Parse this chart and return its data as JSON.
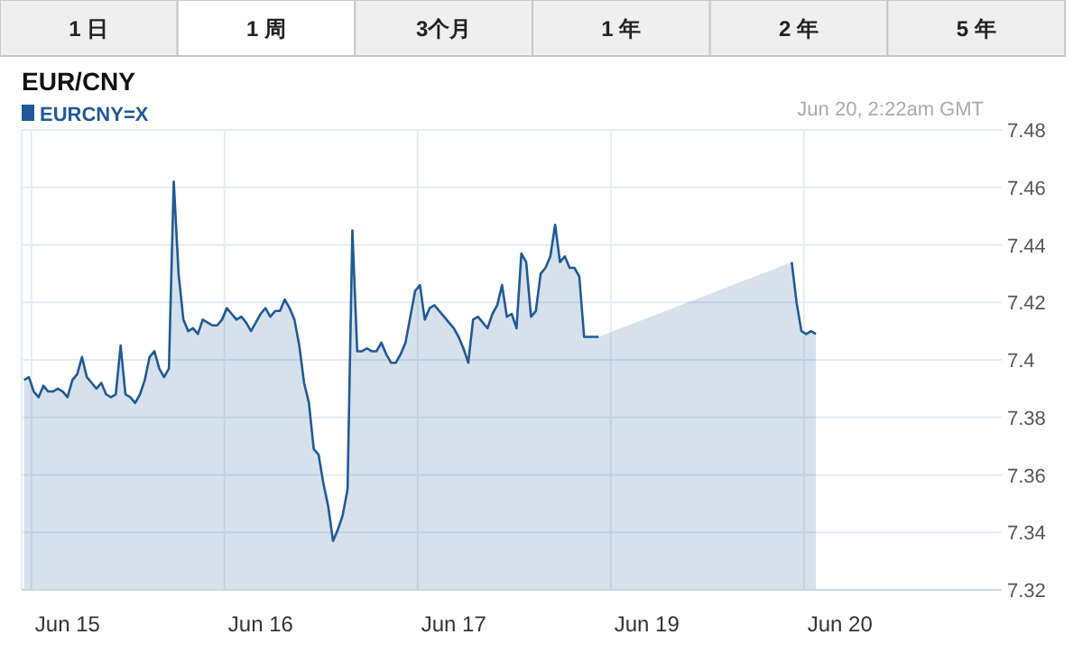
{
  "chart_data": {
    "type": "area",
    "title": "EUR/CNY",
    "annotations": [
      "1 日",
      "1 周",
      "3个月",
      "1 年",
      "2 年",
      "5 年",
      "Jun 20, 2:22am GMT"
    ],
    "legend": "top left",
    "grid": true,
    "marker": "none",
    "line_style": "solid",
    "categories": [
      null,
      null,
      null,
      null,
      null,
      null,
      null,
      null,
      null,
      "Jun 15",
      null,
      null,
      null,
      null,
      null,
      null,
      null,
      null,
      null,
      null,
      null,
      null,
      null,
      null,
      null,
      null,
      null,
      null,
      null,
      null,
      null,
      null,
      null,
      null,
      null,
      null,
      null,
      null,
      null,
      null,
      null,
      null,
      null,
      null,
      null,
      null,
      null,
      null,
      null,
      "Jun 16",
      null,
      null,
      null,
      null,
      null,
      null,
      null,
      null,
      null,
      null,
      null,
      null,
      null,
      null,
      null,
      null,
      null,
      null,
      null,
      null,
      null,
      null,
      null,
      null,
      null,
      null,
      null,
      null,
      null,
      null,
      null,
      null,
      null,
      null,
      null,
      null,
      null,
      null,
      null,
      "Jun 17",
      null,
      null,
      null,
      null,
      null,
      null,
      null,
      null,
      null,
      null,
      null,
      null,
      null,
      null,
      null,
      null,
      null,
      null,
      null,
      null,
      null,
      null,
      null,
      null,
      null,
      null,
      null,
      null,
      null,
      null,
      null,
      null,
      null,
      null,
      null,
      null,
      null,
      null,
      null,
      "Jun 19",
      null,
      null,
      null,
      null,
      null,
      null,
      null,
      null,
      null,
      null,
      null,
      null,
      null,
      null,
      null,
      null,
      null,
      null,
      null,
      null,
      null,
      null,
      null,
      null,
      null,
      null,
      null,
      null,
      null,
      null,
      null,
      null,
      null,
      null,
      null,
      null,
      null,
      null,
      null,
      "Jun 20",
      null,
      null,
      null,
      null,
      null,
      null,
      null,
      null,
      null,
      null,
      null,
      null,
      null,
      null,
      null,
      null,
      null,
      null,
      null,
      null,
      null,
      null,
      null,
      null,
      null,
      null,
      null,
      null,
      null,
      null,
      null,
      null,
      null
    ],
    "ylim": [
      7.32,
      7.48
    ],
    "yticks": [
      7.32,
      7.34,
      7.36,
      7.38,
      7.4,
      7.42,
      7.44,
      7.46,
      7.48
    ],
    "series": [
      {
        "name": "EURCNY=X",
        "color": "#1f5a96",
        "values": [
          7.393,
          7.394,
          7.389,
          7.387,
          7.391,
          7.389,
          7.389,
          7.39,
          7.389,
          7.387,
          7.393,
          7.395,
          7.401,
          7.394,
          7.392,
          7.39,
          7.392,
          7.388,
          7.387,
          7.388,
          7.405,
          7.388,
          7.387,
          7.385,
          7.388,
          7.393,
          7.401,
          7.403,
          7.397,
          7.394,
          7.397,
          7.462,
          7.43,
          7.414,
          7.41,
          7.411,
          7.409,
          7.414,
          7.413,
          7.412,
          7.412,
          7.414,
          7.418,
          7.416,
          7.414,
          7.415,
          7.413,
          7.41,
          7.413,
          7.416,
          7.418,
          7.415,
          7.417,
          7.417,
          7.421,
          7.418,
          7.414,
          7.405,
          7.392,
          7.385,
          7.369,
          7.367,
          7.357,
          7.349,
          7.337,
          7.341,
          7.346,
          7.355,
          7.445,
          7.403,
          7.403,
          7.404,
          7.403,
          7.403,
          7.406,
          7.402,
          7.399,
          7.399,
          7.402,
          7.406,
          7.415,
          7.424,
          7.426,
          7.414,
          7.418,
          7.419,
          7.417,
          7.415,
          7.413,
          7.411,
          7.408,
          7.404,
          7.399,
          7.414,
          7.415,
          7.413,
          7.411,
          7.416,
          7.419,
          7.426,
          7.415,
          7.416,
          7.411,
          7.437,
          7.434,
          7.415,
          7.417,
          7.43,
          7.432,
          7.436,
          7.447,
          7.434,
          7.436,
          7.432,
          7.432,
          7.429,
          7.408,
          7.408,
          7.408,
          7.408,
          null,
          null,
          null,
          null,
          null,
          null,
          null,
          null,
          null,
          null,
          null,
          null,
          null,
          null,
          null,
          null,
          null,
          null,
          null,
          null,
          null,
          null,
          null,
          null,
          null,
          null,
          null,
          null,
          null,
          null,
          null,
          null,
          null,
          null,
          null,
          null,
          null,
          null,
          null,
          7.434,
          7.42,
          7.41,
          7.409,
          7.41,
          7.409,
          null,
          null,
          null,
          null,
          null,
          null,
          null,
          null,
          null,
          null,
          null,
          null,
          null,
          null,
          null,
          null,
          null,
          null,
          null,
          null,
          null,
          null,
          null,
          null,
          null,
          null,
          null,
          null,
          null,
          null,
          null,
          null,
          null,
          null,
          null,
          null,
          null,
          null
        ]
      }
    ]
  }
}
